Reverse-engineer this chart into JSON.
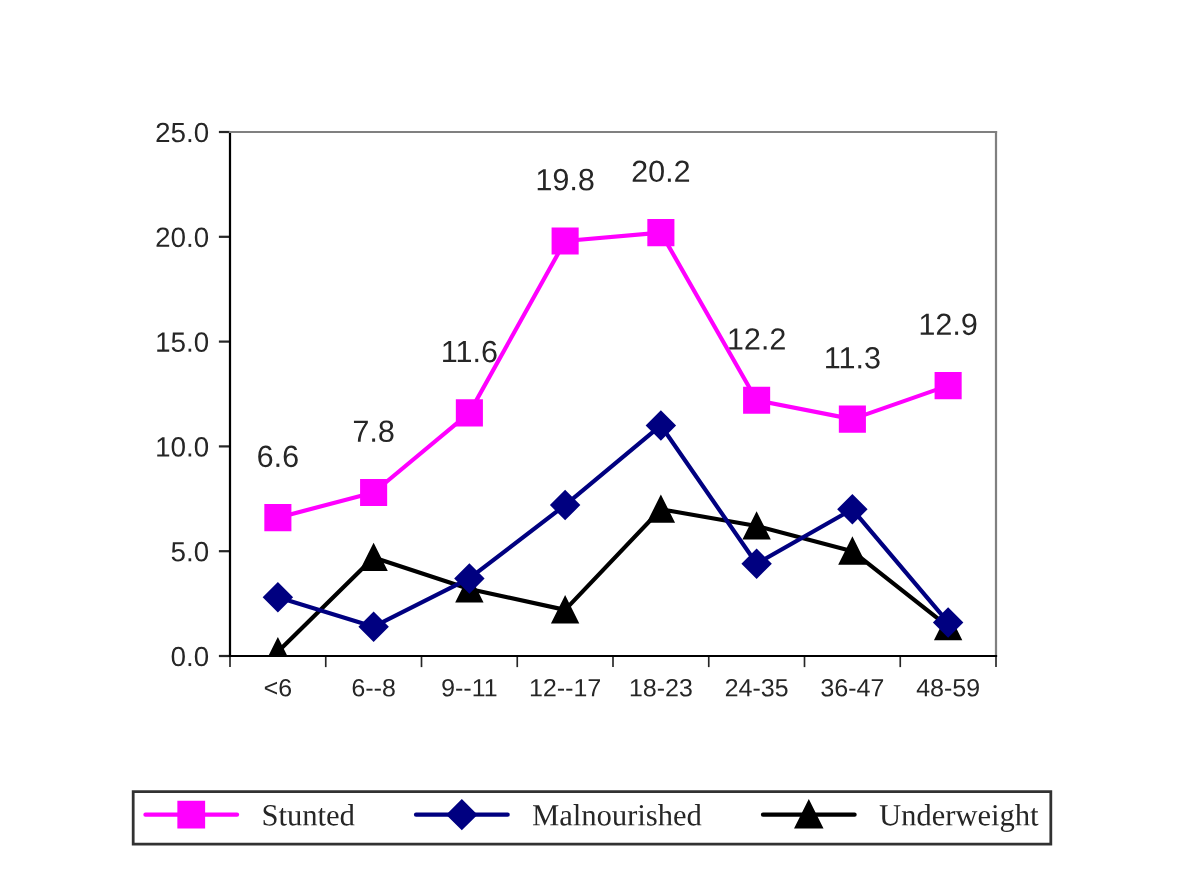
{
  "chart_data": {
    "type": "line",
    "categories": [
      "<6",
      "6--8",
      "9--11",
      "12--17",
      "18-23",
      "24-35",
      "36-47",
      "48-59"
    ],
    "series": [
      {
        "name": "Stunted",
        "color": "#ff00ff",
        "marker": "square",
        "values": [
          6.6,
          7.8,
          11.6,
          19.8,
          20.2,
          12.2,
          11.3,
          12.9
        ],
        "value_labels": [
          "6.6",
          "7.8",
          "11.6",
          "19.8",
          "20.2",
          "12.2",
          "11.3",
          "12.9"
        ]
      },
      {
        "name": "Malnourished",
        "color": "#000080",
        "marker": "diamond",
        "values": [
          2.8,
          1.4,
          3.7,
          7.2,
          11.0,
          4.4,
          7.0,
          1.6
        ]
      },
      {
        "name": "Underweight",
        "color": "#000000",
        "marker": "triangle",
        "values": [
          0.2,
          4.7,
          3.2,
          2.2,
          7.0,
          6.2,
          5.0,
          1.4
        ]
      }
    ],
    "ylim": [
      0,
      25
    ],
    "yticks": [
      {
        "value": 0,
        "label": "0.0"
      },
      {
        "value": 5,
        "label": "5.0"
      },
      {
        "value": 10,
        "label": "10.0"
      },
      {
        "value": 15,
        "label": "15.0"
      },
      {
        "value": 20,
        "label": "20.0"
      },
      {
        "value": 25,
        "label": "25.0"
      }
    ],
    "grid": false,
    "legend": "bottom"
  }
}
